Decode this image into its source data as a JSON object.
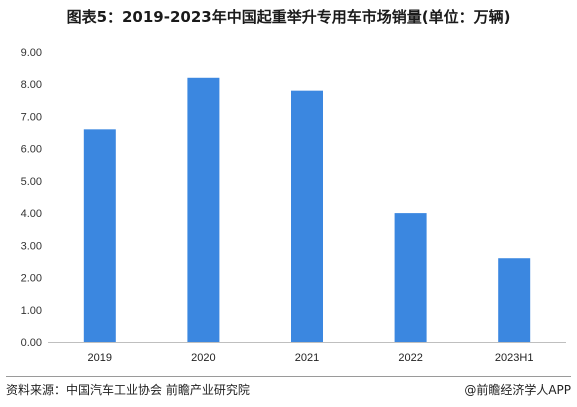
{
  "chart_data": {
    "type": "bar",
    "title": "图表5：2019-2023年中国起重举升专用车市场销量(单位：万辆)",
    "categories": [
      "2019",
      "2020",
      "2021",
      "2022",
      "2023H1"
    ],
    "values": [
      6.6,
      8.2,
      7.8,
      4.0,
      2.6
    ],
    "ylim": [
      0,
      9
    ],
    "yticks": [
      "0.00",
      "1.00",
      "2.00",
      "3.00",
      "4.00",
      "5.00",
      "6.00",
      "7.00",
      "8.00",
      "9.00"
    ],
    "bar_color": "#3b87e0",
    "grid": false,
    "legend": "none"
  },
  "footer": {
    "source": "资料来源：中国汽车工业协会 前瞻产业研究院",
    "brand": "@前瞻经济学人APP"
  }
}
